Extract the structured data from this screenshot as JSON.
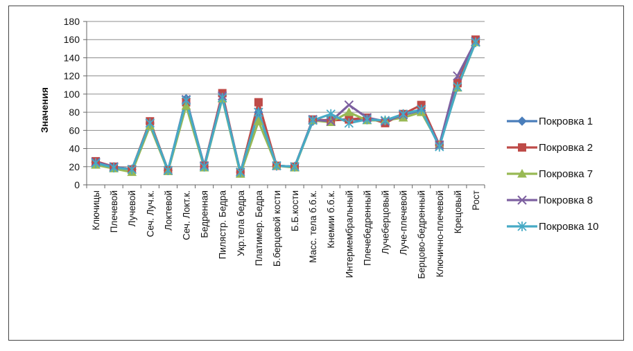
{
  "chart_data": {
    "type": "line",
    "title": "",
    "xlabel": "",
    "ylabel": "Значения",
    "ylim": [
      0,
      180
    ],
    "yticks": [
      0,
      20,
      40,
      60,
      80,
      100,
      120,
      140,
      160,
      180
    ],
    "grid": true,
    "legend_position": "right",
    "categories": [
      "Ключицы",
      "Плечевой",
      "Лучевой",
      "Сеч. Луч.к.",
      "Локтевой",
      "Сеч. Локт.к.",
      "Бедренная",
      "Пилястр. Бедра",
      "Укр.тела бедра",
      "Платимер. Бедра",
      "Б.берцовой кости",
      "Б.Б.кости",
      "Масс. тела б.б.к.",
      "Кнемии б.б.к.",
      "Интермембральный",
      "Плечебедренный",
      "Лучеберцовый",
      "Луче-плечевой",
      "Берцово-бедренный",
      "Ключично-плечевой",
      "Крецовый",
      "Рост"
    ],
    "series": [
      {
        "name": "Покровка 1",
        "color": "#4a7ebb",
        "marker": "diamond",
        "values": [
          25,
          20,
          17,
          68,
          16,
          95,
          20,
          98,
          14,
          80,
          21,
          20,
          70,
          72,
          72,
          72,
          70,
          77,
          82,
          44,
          110,
          158
        ]
      },
      {
        "name": "Покровка 2",
        "color": "#be4b48",
        "marker": "square",
        "values": [
          26,
          20,
          17,
          70,
          16,
          91,
          21,
          101,
          13,
          91,
          21,
          20,
          72,
          71,
          72,
          74,
          68,
          78,
          88,
          44,
          112,
          160
        ]
      },
      {
        "name": "Покровка 7",
        "color": "#98b954",
        "marker": "triangle",
        "values": [
          22,
          18,
          14,
          65,
          15,
          87,
          19,
          95,
          12,
          70,
          21,
          19,
          71,
          69,
          80,
          71,
          71,
          74,
          80,
          44,
          107,
          157
        ]
      },
      {
        "name": "Покровка 8",
        "color": "#7d60a0",
        "marker": "x",
        "values": [
          25,
          20,
          17,
          68,
          16,
          94,
          21,
          98,
          14,
          80,
          21,
          20,
          72,
          70,
          88,
          74,
          70,
          77,
          83,
          44,
          120,
          158
        ]
      },
      {
        "name": "Покровка 10",
        "color": "#46aac5",
        "marker": "star",
        "values": [
          24,
          19,
          17,
          68,
          16,
          93,
          20,
          96,
          14,
          80,
          21,
          20,
          71,
          78,
          68,
          72,
          71,
          78,
          83,
          42,
          108,
          157
        ]
      }
    ]
  }
}
